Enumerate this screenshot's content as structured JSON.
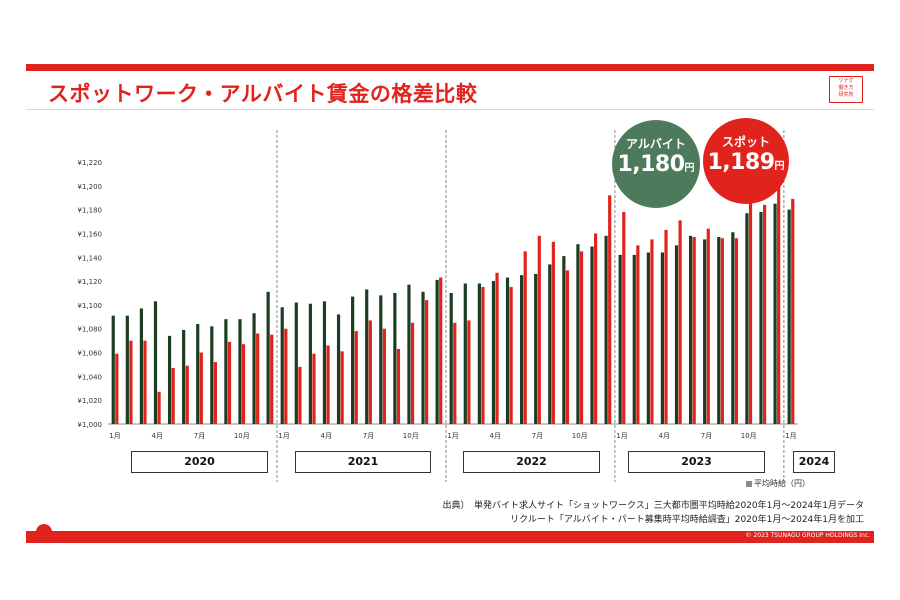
{
  "title": "スポットワーク・アルバイト賃金の格差比較",
  "logo_text": [
    "ツナグ",
    "働き方",
    "研究所"
  ],
  "copyright": "© 2023 TSUNAGU GROUP HOLDINGS Inc.",
  "source_lines": [
    "出典）　単発バイト求人サイト「ショットワークス」三大都市圏平均時給2020年1月～2024年1月データ",
    "リクルート「アルバイト・パート募集時平均時給調査」2020年1月～2024年1月を加工"
  ],
  "legend_text": "平均時給（円）",
  "callouts": {
    "baito": {
      "label": "アルバイト",
      "value": "1,180",
      "unit": "円",
      "color": "#4e7a5c"
    },
    "spot": {
      "label": "スポット",
      "value": "1,189",
      "unit": "円",
      "color": "#e0231c"
    }
  },
  "year_labels": [
    "2020",
    "2021",
    "2022",
    "2023",
    "2024"
  ],
  "chart_data": {
    "type": "bar",
    "ylim": [
      1000,
      1220
    ],
    "yticks": [
      1000,
      1020,
      1040,
      1060,
      1080,
      1100,
      1120,
      1140,
      1160,
      1180,
      1200,
      1220
    ],
    "ytick_labels": [
      "¥1,000",
      "¥1,020",
      "¥1,040",
      "¥1,060",
      "¥1,080",
      "¥1,100",
      "¥1,120",
      "¥1,140",
      "¥1,160",
      "¥1,180",
      "¥1,200",
      "¥1,220"
    ],
    "categories": [
      "2020-01",
      "2020-02",
      "2020-03",
      "2020-04",
      "2020-05",
      "2020-06",
      "2020-07",
      "2020-08",
      "2020-09",
      "2020-10",
      "2020-11",
      "2020-12",
      "2021-01",
      "2021-02",
      "2021-03",
      "2021-04",
      "2021-05",
      "2021-06",
      "2021-07",
      "2021-08",
      "2021-09",
      "2021-10",
      "2021-11",
      "2021-12",
      "2022-01",
      "2022-02",
      "2022-03",
      "2022-04",
      "2022-05",
      "2022-06",
      "2022-07",
      "2022-08",
      "2022-09",
      "2022-10",
      "2022-11",
      "2022-12",
      "2023-01",
      "2023-02",
      "2023-03",
      "2023-04",
      "2023-05",
      "2023-06",
      "2023-07",
      "2023-08",
      "2023-09",
      "2023-10",
      "2023-11",
      "2023-12",
      "2024-01"
    ],
    "xtick_labels": [
      "1月",
      "",
      "",
      "4月",
      "",
      "",
      "7月",
      "",
      "",
      "10月",
      "",
      "",
      "1月",
      "",
      "",
      "4月",
      "",
      "",
      "7月",
      "",
      "",
      "10月",
      "",
      "",
      "1月",
      "",
      "",
      "4月",
      "",
      "",
      "7月",
      "",
      "",
      "10月",
      "",
      "",
      "1月",
      "",
      "",
      "4月",
      "",
      "",
      "7月",
      "",
      "",
      "10月",
      "",
      "",
      "1月"
    ],
    "series": [
      {
        "name": "アルバイト",
        "color": "#1c3d22",
        "values": [
          1091,
          1091,
          1097,
          1103,
          1074,
          1079,
          1084,
          1082,
          1088,
          1088,
          1093,
          1111,
          1098,
          1102,
          1101,
          1103,
          1092,
          1107,
          1113,
          1108,
          1110,
          1117,
          1111,
          1121,
          1110,
          1118,
          1118,
          1120,
          1123,
          1125,
          1126,
          1134,
          1141,
          1151,
          1149,
          1158,
          1142,
          1142,
          1144,
          1144,
          1150,
          1158,
          1155,
          1157,
          1161,
          1177,
          1178,
          1185,
          1180
        ]
      },
      {
        "name": "スポット",
        "color": "#e0231c",
        "values": [
          1059,
          1070,
          1070,
          1027,
          1047,
          1049,
          1060,
          1052,
          1069,
          1067,
          1076,
          1075,
          1080,
          1048,
          1059,
          1066,
          1061,
          1078,
          1087,
          1080,
          1063,
          1085,
          1104,
          1123,
          1085,
          1087,
          1115,
          1127,
          1115,
          1145,
          1158,
          1153,
          1129,
          1145,
          1160,
          1192,
          1178,
          1150,
          1155,
          1163,
          1171,
          1157,
          1164,
          1156,
          1156,
          1197,
          1184,
          1201,
          1189
        ]
      }
    ],
    "dividers_after_index": [
      11,
      23,
      35,
      47
    ]
  }
}
